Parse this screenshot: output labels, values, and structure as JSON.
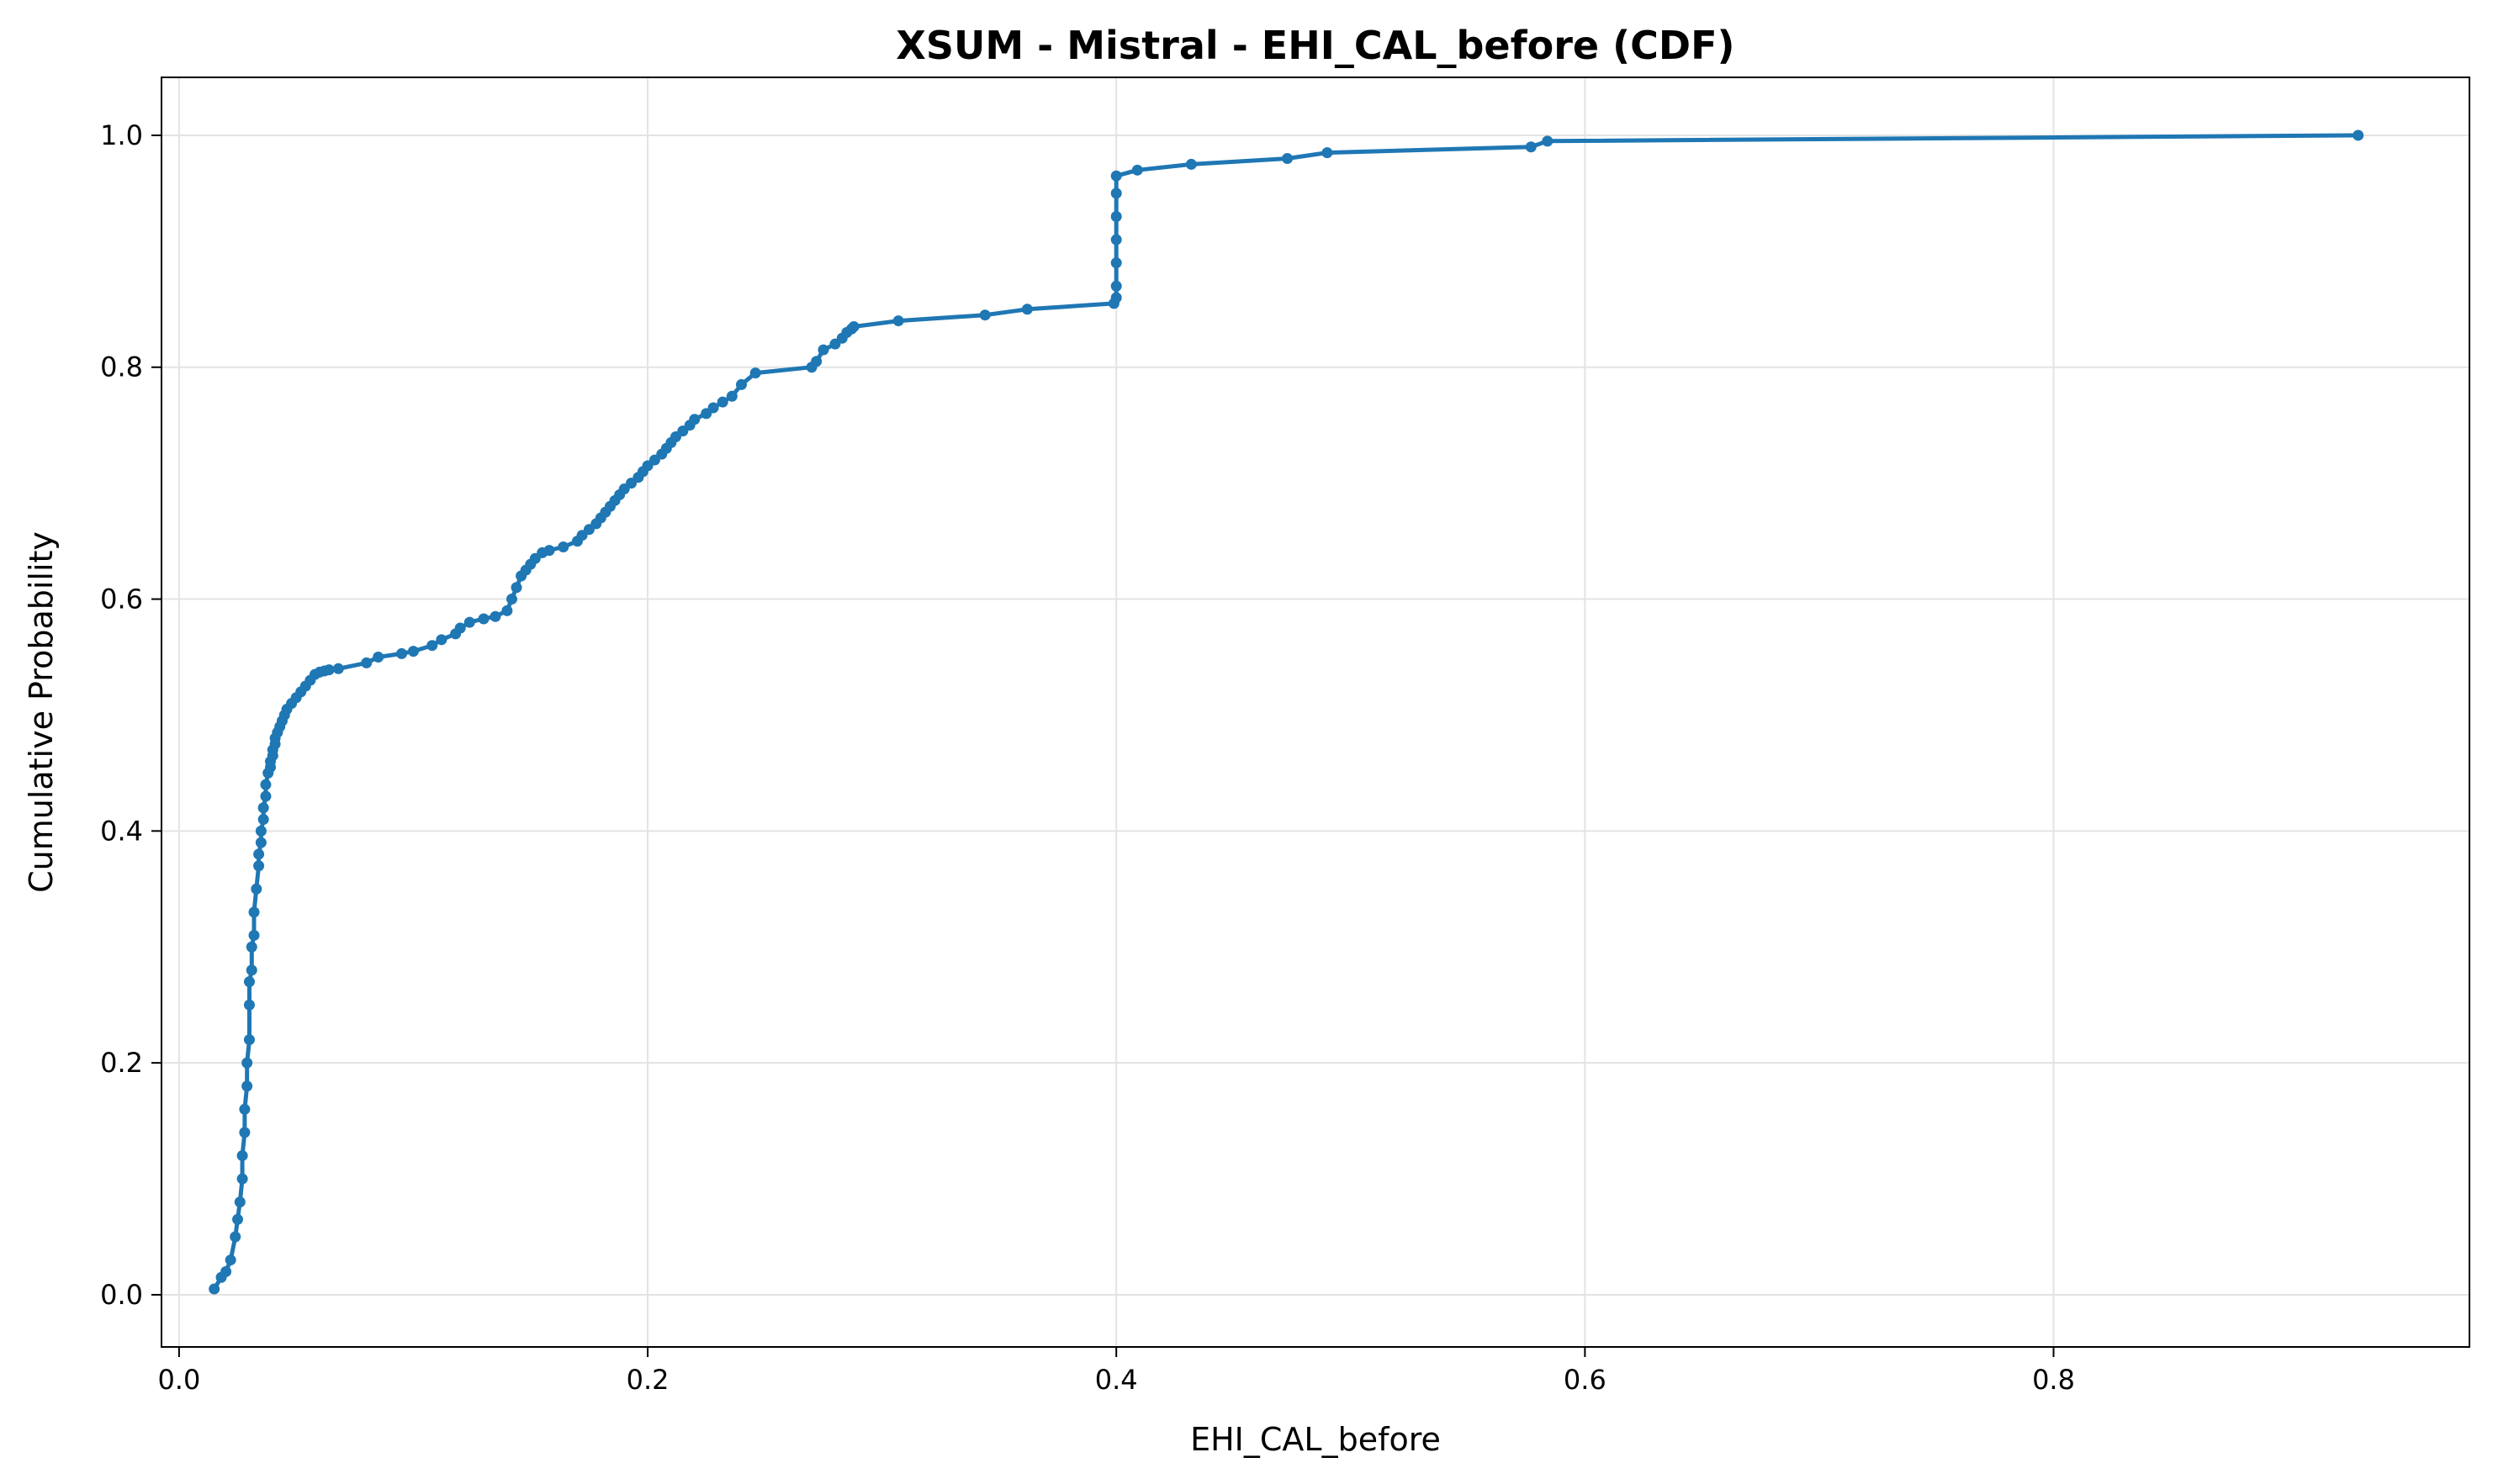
{
  "chart_data": {
    "type": "line",
    "title": "XSUM - Mistral - EHI_CAL_before (CDF)",
    "xlabel": "EHI_CAL_before",
    "ylabel": "Cumulative Probability",
    "xlim": [
      -0.0075,
      0.9775
    ],
    "ylim": [
      -0.045,
      1.05
    ],
    "xticks": [
      0.0,
      0.2,
      0.4,
      0.6,
      0.8
    ],
    "xtick_labels": [
      "0.0",
      "0.2",
      "0.4",
      "0.6",
      "0.8"
    ],
    "yticks": [
      0.0,
      0.2,
      0.4,
      0.6,
      0.8,
      1.0
    ],
    "ytick_labels": [
      "0.0",
      "0.2",
      "0.4",
      "0.6",
      "0.8",
      "1.0"
    ],
    "grid": true,
    "color": "#1f77b4",
    "series": [
      {
        "x": [
          0.015,
          0.018,
          0.02,
          0.022,
          0.024,
          0.025,
          0.026,
          0.027,
          0.027,
          0.028,
          0.028,
          0.029,
          0.029,
          0.03,
          0.03,
          0.03,
          0.031,
          0.031,
          0.032,
          0.032,
          0.033,
          0.034,
          0.034,
          0.035,
          0.035,
          0.036,
          0.036,
          0.037,
          0.037,
          0.038,
          0.039,
          0.039,
          0.04,
          0.04,
          0.041,
          0.041,
          0.042,
          0.043,
          0.044,
          0.045,
          0.046,
          0.048,
          0.05,
          0.052,
          0.054,
          0.056,
          0.058,
          0.06,
          0.062,
          0.064,
          0.068,
          0.08,
          0.085,
          0.095,
          0.1,
          0.108,
          0.112,
          0.118,
          0.12,
          0.124,
          0.13,
          0.135,
          0.14,
          0.142,
          0.144,
          0.146,
          0.148,
          0.15,
          0.152,
          0.155,
          0.158,
          0.164,
          0.17,
          0.172,
          0.175,
          0.178,
          0.18,
          0.182,
          0.184,
          0.186,
          0.188,
          0.19,
          0.193,
          0.196,
          0.198,
          0.2,
          0.203,
          0.206,
          0.208,
          0.21,
          0.212,
          0.215,
          0.218,
          0.22,
          0.225,
          0.228,
          0.232,
          0.236,
          0.24,
          0.246,
          0.27,
          0.272,
          0.275,
          0.28,
          0.283,
          0.285,
          0.287,
          0.288,
          0.307,
          0.344,
          0.362,
          0.399,
          0.4,
          0.4,
          0.4,
          0.4,
          0.4,
          0.4,
          0.4,
          0.409,
          0.432,
          0.473,
          0.49,
          0.577,
          0.584,
          0.93
        ],
        "y": [
          0.005,
          0.015,
          0.02,
          0.03,
          0.05,
          0.065,
          0.08,
          0.1,
          0.12,
          0.14,
          0.16,
          0.18,
          0.2,
          0.22,
          0.25,
          0.27,
          0.28,
          0.3,
          0.31,
          0.33,
          0.35,
          0.37,
          0.38,
          0.39,
          0.4,
          0.41,
          0.42,
          0.43,
          0.44,
          0.45,
          0.455,
          0.46,
          0.465,
          0.47,
          0.475,
          0.48,
          0.485,
          0.49,
          0.495,
          0.5,
          0.505,
          0.51,
          0.515,
          0.52,
          0.525,
          0.53,
          0.535,
          0.537,
          0.538,
          0.539,
          0.54,
          0.545,
          0.55,
          0.553,
          0.555,
          0.56,
          0.565,
          0.57,
          0.575,
          0.58,
          0.583,
          0.585,
          0.59,
          0.6,
          0.61,
          0.62,
          0.625,
          0.63,
          0.635,
          0.64,
          0.642,
          0.645,
          0.65,
          0.655,
          0.66,
          0.665,
          0.67,
          0.675,
          0.68,
          0.685,
          0.69,
          0.695,
          0.7,
          0.705,
          0.71,
          0.715,
          0.72,
          0.725,
          0.73,
          0.735,
          0.74,
          0.745,
          0.75,
          0.755,
          0.76,
          0.765,
          0.77,
          0.775,
          0.785,
          0.795,
          0.8,
          0.805,
          0.815,
          0.82,
          0.825,
          0.83,
          0.833,
          0.835,
          0.84,
          0.845,
          0.85,
          0.855,
          0.86,
          0.87,
          0.89,
          0.91,
          0.93,
          0.95,
          0.965,
          0.97,
          0.975,
          0.98,
          0.985,
          0.99,
          0.995,
          1.0
        ]
      }
    ]
  }
}
